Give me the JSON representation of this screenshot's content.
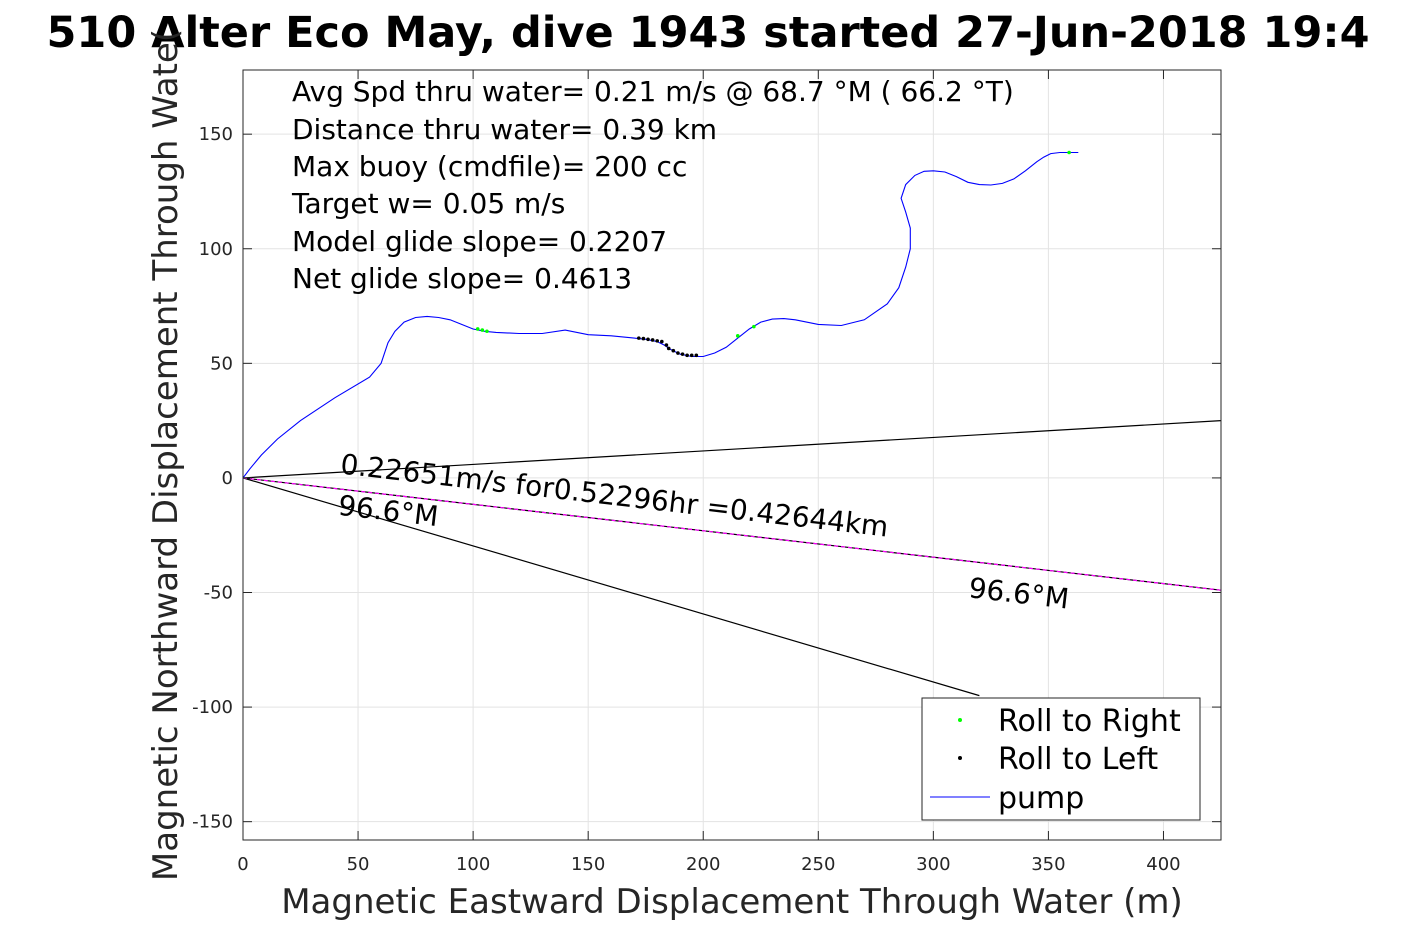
{
  "chart_data": {
    "type": "line",
    "title": "510 Alter Eco May, dive 1943 started 27-Jun-2018 19:4",
    "xlabel": "Magnetic Eastward Displacement Through Water (m)",
    "ylabel": "Magnetic Northward Displacement Through Wate(",
    "xlim": [
      0,
      425
    ],
    "ylim": [
      -158,
      178
    ],
    "xticks": [
      0,
      50,
      100,
      150,
      200,
      250,
      300,
      350,
      400
    ],
    "yticks": [
      -150,
      -100,
      -50,
      0,
      50,
      100,
      150
    ],
    "xtick_labels": [
      "0",
      "50",
      "100",
      "150",
      "200",
      "250",
      "300",
      "350",
      "400"
    ],
    "ytick_labels": [
      "-150",
      "-100",
      "-50",
      "0",
      "50",
      "100",
      "150"
    ],
    "grid": true,
    "legend_position": "bottom-right",
    "notes": [
      "Avg Spd thru water=  0.21 m/s @  68.7 °M ( 66.2 °T)",
      "Distance thru water=  0.39 km",
      "Max buoy (cmdfile)= 200 cc",
      "Target w= 0.05 m/s",
      "Model glide slope= 0.2207",
      "Net glide slope= 0.4613"
    ],
    "legend": [
      {
        "label": "Roll to Right",
        "marker": "dot",
        "color": "#00ff00"
      },
      {
        "label": "Roll to Left",
        "marker": "dot",
        "color": "#000000"
      },
      {
        "label": "pump",
        "marker": "line",
        "color": "#0000ff"
      }
    ],
    "series": [
      {
        "name": "pump",
        "color": "#0000ff",
        "x": [
          0,
          3,
          8,
          15,
          25,
          40,
          55,
          60,
          63,
          66,
          70,
          75,
          80,
          85,
          90,
          95,
          100,
          105,
          110,
          120,
          130,
          140,
          150,
          160,
          170,
          175,
          180,
          183,
          186,
          190,
          195,
          200,
          205,
          210,
          215,
          220,
          225,
          230,
          235,
          240,
          250,
          260,
          270,
          280,
          285,
          288,
          290,
          290,
          288,
          286,
          288,
          292,
          296,
          300,
          305,
          310,
          315,
          320,
          325,
          330,
          335,
          340,
          345,
          348,
          351,
          355,
          358,
          361,
          363
        ],
        "y": [
          0,
          4,
          10,
          17,
          25,
          35,
          44,
          50,
          59,
          64,
          68,
          70,
          70.5,
          70,
          69,
          67,
          65,
          64,
          63.5,
          63,
          63,
          64.5,
          62.5,
          62,
          61,
          60.5,
          59.5,
          58,
          56,
          54,
          53,
          53,
          54.5,
          57,
          61,
          65,
          68,
          69.3,
          69.5,
          69,
          67,
          66.5,
          69,
          76,
          83,
          92,
          100,
          109,
          116,
          122,
          128,
          132,
          133.8,
          134,
          133.5,
          131.5,
          129,
          128,
          127.8,
          128.5,
          130.5,
          134,
          138,
          140,
          141.5,
          142,
          142,
          142,
          142
        ]
      }
    ],
    "roll_right_points": {
      "color": "#00ff00",
      "x": [
        102,
        104,
        106,
        215,
        222,
        359
      ],
      "y": [
        65,
        64.5,
        64,
        62,
        66,
        142
      ]
    },
    "roll_left_points": {
      "color": "#000000",
      "x": [
        172,
        174,
        176,
        178,
        180,
        182,
        184,
        185,
        187,
        189,
        191,
        193,
        195,
        197
      ],
      "y": [
        61,
        60.8,
        60.5,
        60.2,
        59.8,
        59.5,
        58,
        56.5,
        55.5,
        54.5,
        54,
        53.5,
        53.5,
        53.5
      ]
    },
    "reference_lines": [
      {
        "color": "#000000",
        "x": [
          0,
          425
        ],
        "y": [
          0,
          25
        ]
      },
      {
        "color": "#000000",
        "x": [
          0,
          320
        ],
        "y": [
          0,
          -95
        ]
      },
      {
        "color": "#000000",
        "x": [
          0,
          425
        ],
        "y": [
          0,
          -49
        ]
      },
      {
        "color": "#ff00ff",
        "dashed": true,
        "x": [
          0,
          425
        ],
        "y": [
          0,
          -49
        ]
      }
    ],
    "annotations": [
      {
        "text": "0.22651m/s for0.52296hr =0.42644km",
        "x": 42,
        "y": 2,
        "angle": 6.6
      },
      {
        "text": "96.6°M",
        "x": 41,
        "y": -16,
        "angle": 6.6
      },
      {
        "text": "96.6°M",
        "x": 315,
        "y": -52,
        "angle": 6.6
      }
    ]
  }
}
